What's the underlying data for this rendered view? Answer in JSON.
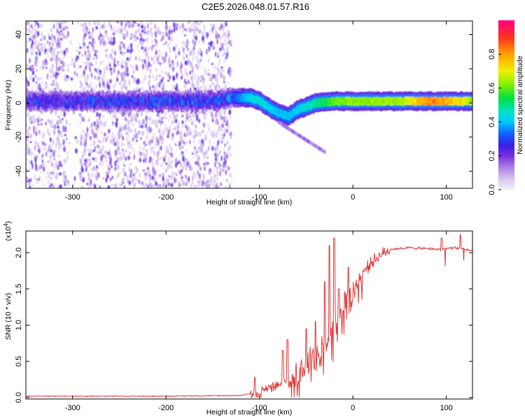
{
  "title": "C2E5.2026.048.01.57.R16",
  "chart_data": [
    {
      "type": "heatmap",
      "xlabel": "Height of straight line (km)",
      "ylabel": "Frequency (Hz)",
      "xlim": [
        -350,
        128
      ],
      "ylim": [
        -50,
        48
      ],
      "x_ticks": [
        -300,
        -200,
        -100,
        0,
        100
      ],
      "x_tick_labels": [
        "-300",
        "-200",
        "-100",
        "0",
        "100"
      ],
      "y_ticks": [
        -40,
        -20,
        0,
        20,
        40
      ],
      "y_tick_labels": [
        "-40",
        "-20",
        "0",
        "20",
        "40"
      ],
      "colorbar": {
        "label": "Normalized spectral amplitude",
        "range": [
          0,
          1
        ],
        "ticks": [
          0.0,
          0.2,
          0.4,
          0.6,
          0.8
        ],
        "tick_labels": [
          "0.0",
          "0.2",
          "0.4",
          "0.6",
          "0.8"
        ]
      },
      "carrier_center_hz": [
        [
          -350,
          1
        ],
        [
          -300,
          1
        ],
        [
          -250,
          1
        ],
        [
          -200,
          1
        ],
        [
          -150,
          1
        ],
        [
          -130,
          3
        ],
        [
          -110,
          3
        ],
        [
          -100,
          1
        ],
        [
          -90,
          -3
        ],
        [
          -80,
          -6
        ],
        [
          -70,
          -8
        ],
        [
          -60,
          -4
        ],
        [
          -50,
          -2
        ],
        [
          -40,
          0
        ],
        [
          -20,
          1
        ],
        [
          0,
          1
        ],
        [
          50,
          1
        ],
        [
          100,
          1
        ],
        [
          128,
          1
        ]
      ],
      "carrier_amplitude": [
        [
          -350,
          0.25
        ],
        [
          -130,
          0.3
        ],
        [
          -110,
          0.45
        ],
        [
          -100,
          0.45
        ],
        [
          -80,
          0.4
        ],
        [
          -60,
          0.42
        ],
        [
          -40,
          0.5
        ],
        [
          -20,
          0.6
        ],
        [
          0,
          0.65
        ],
        [
          50,
          0.65
        ],
        [
          80,
          0.85
        ],
        [
          100,
          0.8
        ],
        [
          128,
          0.65
        ]
      ],
      "noise_region": [
        -350,
        -130
      ]
    },
    {
      "type": "line",
      "xlabel": "Height of straight line (km)",
      "ylabel": "SNR (10 * v/v)",
      "y_scale_label_main": "(x10",
      "y_scale_label_exp": "4",
      "y_scale_label_close": ")",
      "xlim": [
        -350,
        128
      ],
      "ylim": [
        -0.02,
        2.3
      ],
      "x_ticks": [
        -300,
        -200,
        -100,
        0,
        100
      ],
      "x_tick_labels": [
        "-300",
        "-200",
        "-100",
        "0",
        "100"
      ],
      "y_ticks": [
        0.0,
        0.5,
        1.0,
        1.5,
        2.0
      ],
      "y_tick_labels": [
        "0.0",
        "0.5",
        "1.0",
        "1.5",
        "2.0"
      ],
      "color": "#e03a3a",
      "series_envelope": [
        [
          -350,
          0.02
        ],
        [
          -200,
          0.02
        ],
        [
          -120,
          0.03
        ],
        [
          -100,
          0.08
        ],
        [
          -90,
          0.15
        ],
        [
          -80,
          0.22
        ],
        [
          -70,
          0.25
        ],
        [
          -60,
          0.35
        ],
        [
          -50,
          0.45
        ],
        [
          -40,
          0.6
        ],
        [
          -30,
          0.8
        ],
        [
          -20,
          1.05
        ],
        [
          -10,
          1.3
        ],
        [
          0,
          1.5
        ],
        [
          10,
          1.72
        ],
        [
          20,
          1.88
        ],
        [
          30,
          1.98
        ],
        [
          40,
          2.05
        ],
        [
          60,
          2.07
        ],
        [
          90,
          2.05
        ],
        [
          110,
          2.07
        ],
        [
          128,
          2.03
        ]
      ],
      "spikes": [
        [
          -105,
          0.28
        ],
        [
          -75,
          0.65
        ],
        [
          -70,
          0.8
        ],
        [
          -50,
          0.95
        ],
        [
          -40,
          1.05
        ],
        [
          -30,
          1.6
        ],
        [
          -25,
          2.1
        ],
        [
          -20,
          2.2
        ],
        [
          -15,
          1.5
        ],
        [
          -5,
          1.8
        ],
        [
          95,
          2.2
        ],
        [
          115,
          2.25
        ]
      ]
    }
  ]
}
